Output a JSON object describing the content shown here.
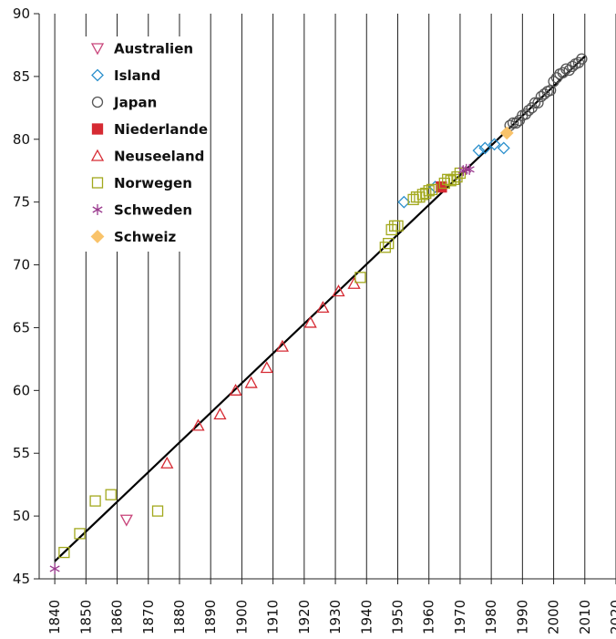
{
  "chart_data": {
    "type": "scatter",
    "title": "",
    "xlabel": "",
    "ylabel": "",
    "xlim": [
      1835,
      2020
    ],
    "ylim": [
      45,
      90
    ],
    "x_ticks": [
      "1840",
      "1850",
      "1860",
      "1870",
      "1880",
      "1890",
      "1900",
      "1910",
      "1920",
      "1930",
      "1940",
      "1950",
      "1960",
      "1970",
      "1980",
      "1990",
      "2000",
      "2010",
      "2020"
    ],
    "y_ticks": [
      "45",
      "50",
      "55",
      "60",
      "65",
      "70",
      "75",
      "80",
      "85",
      "90"
    ],
    "grid": "vertical",
    "legend_position": "top-left",
    "trend_line": {
      "x": [
        1840,
        2010
      ],
      "y": [
        46.4,
        86.6
      ],
      "color": "#000000"
    },
    "series": [
      {
        "name": "Australien",
        "marker": "triangle-down",
        "color": "#c8447a",
        "points": [
          [
            1863,
            49.7
          ]
        ]
      },
      {
        "name": "Island",
        "marker": "diamond",
        "color": "#2a8fcc",
        "points": [
          [
            1952,
            75.0
          ],
          [
            1962,
            76.2
          ],
          [
            1976,
            79.1
          ],
          [
            1978,
            79.3
          ],
          [
            1981,
            79.6
          ],
          [
            1984,
            79.3
          ]
        ]
      },
      {
        "name": "Japan",
        "marker": "circle",
        "color": "#555555",
        "points": [
          [
            1986,
            81.1
          ],
          [
            1987,
            81.3
          ],
          [
            1988,
            81.3
          ],
          [
            1989,
            81.5
          ],
          [
            1990,
            81.9
          ],
          [
            1991,
            82.0
          ],
          [
            1992,
            82.3
          ],
          [
            1993,
            82.5
          ],
          [
            1994,
            82.9
          ],
          [
            1995,
            82.9
          ],
          [
            1996,
            83.4
          ],
          [
            1997,
            83.6
          ],
          [
            1998,
            83.8
          ],
          [
            1999,
            83.9
          ],
          [
            2000,
            84.6
          ],
          [
            2001,
            84.9
          ],
          [
            2002,
            85.2
          ],
          [
            2003,
            85.3
          ],
          [
            2004,
            85.6
          ],
          [
            2005,
            85.5
          ],
          [
            2006,
            85.8
          ],
          [
            2007,
            86.0
          ],
          [
            2008,
            86.1
          ],
          [
            2009,
            86.4
          ]
        ]
      },
      {
        "name": "Niederlande",
        "marker": "square-filled",
        "color": "#d62a33",
        "points": [
          [
            1964,
            76.2
          ]
        ]
      },
      {
        "name": "Neuseeland",
        "marker": "triangle-up",
        "color": "#d62a33",
        "points": [
          [
            1876,
            54.2
          ],
          [
            1886,
            57.2
          ],
          [
            1893,
            58.1
          ],
          [
            1898,
            60.0
          ],
          [
            1903,
            60.6
          ],
          [
            1908,
            61.8
          ],
          [
            1913,
            63.5
          ],
          [
            1922,
            65.4
          ],
          [
            1926,
            66.6
          ],
          [
            1931,
            67.9
          ],
          [
            1936,
            68.5
          ]
        ]
      },
      {
        "name": "Norwegen",
        "marker": "square",
        "color": "#a2a81c",
        "points": [
          [
            1843,
            47.1
          ],
          [
            1848,
            48.6
          ],
          [
            1853,
            51.2
          ],
          [
            1858,
            51.7
          ],
          [
            1873,
            50.4
          ],
          [
            1938,
            69.0
          ],
          [
            1946,
            71.4
          ],
          [
            1947,
            71.7
          ],
          [
            1948,
            72.8
          ],
          [
            1949,
            73.1
          ],
          [
            1950,
            73.1
          ],
          [
            1955,
            75.2
          ],
          [
            1956,
            75.4
          ],
          [
            1957,
            75.4
          ],
          [
            1958,
            75.6
          ],
          [
            1959,
            75.7
          ],
          [
            1960,
            75.9
          ],
          [
            1961,
            76.0
          ],
          [
            1965,
            76.5
          ],
          [
            1966,
            76.8
          ],
          [
            1967,
            76.7
          ],
          [
            1968,
            76.8
          ],
          [
            1969,
            77.0
          ],
          [
            1970,
            77.3
          ]
        ]
      },
      {
        "name": "Schweden",
        "marker": "asterisk",
        "color": "#9a3a8e",
        "points": [
          [
            1840,
            45.8
          ],
          [
            1971,
            77.5
          ],
          [
            1972,
            77.6
          ],
          [
            1973,
            77.6
          ]
        ]
      },
      {
        "name": "Schweiz",
        "marker": "diamond-filled",
        "color": "#f9c36a",
        "points": [
          [
            1985,
            80.5
          ]
        ]
      }
    ]
  }
}
